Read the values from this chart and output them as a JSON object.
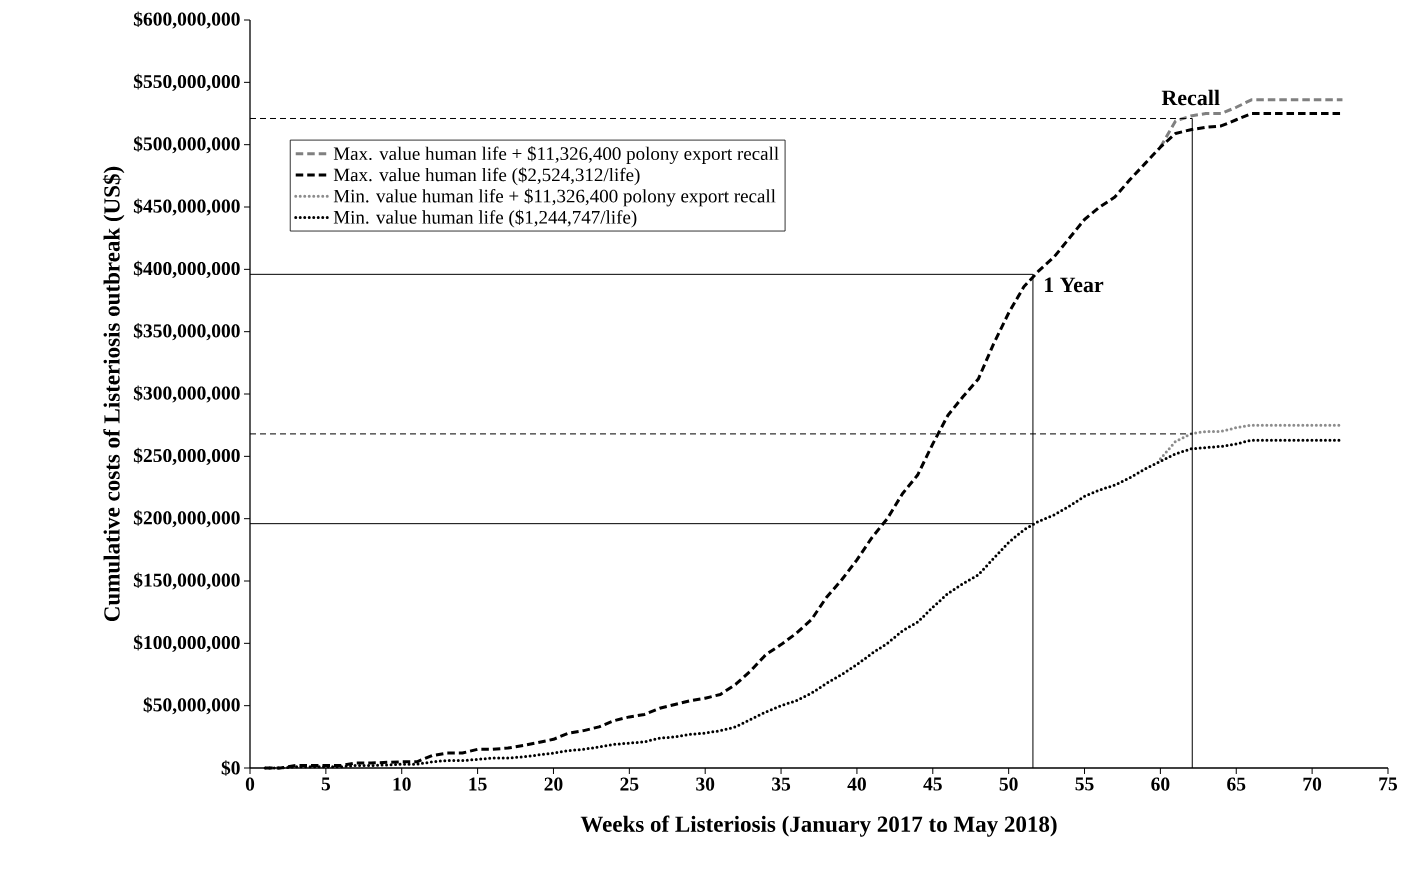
{
  "chart_data": {
    "type": "line",
    "xlabel": "Weeks of Listeriosis (January 2017 to May 2018)",
    "ylabel": "Cumulative costs of Listeriosis outbreak (US$)",
    "xlim": [
      0,
      75
    ],
    "xticks": [
      0,
      5,
      10,
      15,
      20,
      25,
      30,
      35,
      40,
      45,
      50,
      55,
      60,
      65,
      70,
      75
    ],
    "ylim": [
      0,
      600000000
    ],
    "yticks": [
      {
        "value": 0,
        "label": "$0"
      },
      {
        "value": 50000000,
        "label": "$50,000,000"
      },
      {
        "value": 100000000,
        "label": "$100,000,000"
      },
      {
        "value": 150000000,
        "label": "$150,000,000"
      },
      {
        "value": 200000000,
        "label": "$200,000,000"
      },
      {
        "value": 250000000,
        "label": "$250,000,000"
      },
      {
        "value": 300000000,
        "label": "$300,000,000"
      },
      {
        "value": 350000000,
        "label": "$350,000,000"
      },
      {
        "value": 400000000,
        "label": "$400,000,000"
      },
      {
        "value": 450000000,
        "label": "$450,000,000"
      },
      {
        "value": 500000000,
        "label": "$500,000,000"
      },
      {
        "value": 550000000,
        "label": "$550,000,000"
      },
      {
        "value": 600000000,
        "label": "$600,000,000"
      }
    ],
    "legend": "top left",
    "marker": "none",
    "series": [
      {
        "name": "Max. value human life + $11,326,400 polony export recall",
        "color": "#808080",
        "line_style": "dashed",
        "x": [
          60,
          61,
          62,
          63,
          64,
          65,
          66,
          72
        ],
        "values": [
          498000000,
          519000000,
          523000000,
          525000000,
          525000000,
          530000000,
          536000000,
          536000000
        ]
      },
      {
        "name": "Max. value human life ($2,524,312/life)",
        "color": "#000000",
        "line_style": "dashed",
        "x": [
          1,
          2,
          3,
          5,
          6,
          7,
          8,
          10,
          11,
          12,
          13,
          14,
          15,
          16,
          17,
          18,
          20,
          21,
          22,
          23,
          24,
          25,
          26,
          27,
          28,
          29,
          30,
          31,
          32,
          33,
          34,
          35,
          36,
          37,
          38,
          39,
          40,
          41,
          42,
          43,
          44,
          45,
          46,
          47,
          48,
          49,
          50,
          51,
          52,
          53,
          54,
          55,
          56,
          57,
          58,
          59,
          60,
          61,
          62,
          63,
          64,
          65,
          66,
          72
        ],
        "values": [
          0,
          0,
          2000000,
          2000000,
          2000000,
          4000000,
          4000000,
          5000000,
          5000000,
          10000000,
          12000000,
          12000000,
          15000000,
          15000000,
          16000000,
          18000000,
          23000000,
          28000000,
          30000000,
          33000000,
          38000000,
          41000000,
          43000000,
          48000000,
          51000000,
          54000000,
          56000000,
          59000000,
          67000000,
          78000000,
          91000000,
          99000000,
          108000000,
          119000000,
          137000000,
          151000000,
          167000000,
          185000000,
          200000000,
          220000000,
          235000000,
          260000000,
          283000000,
          298000000,
          312000000,
          340000000,
          365000000,
          386000000,
          399000000,
          410000000,
          425000000,
          440000000,
          450000000,
          458000000,
          472000000,
          485000000,
          498000000,
          509000000,
          512000000,
          514000000,
          515000000,
          520000000,
          525000000,
          525000000
        ]
      },
      {
        "name": "Min. value human life + $11,326,400 polony export recall",
        "color": "#8c8c8c",
        "line_style": "dotted",
        "x": [
          60,
          61,
          62,
          63,
          64,
          65,
          66,
          72
        ],
        "values": [
          248000000,
          262000000,
          268000000,
          270000000,
          270000000,
          273000000,
          275000000,
          275000000
        ]
      },
      {
        "name": "Min. value human life ($1,244,747/life)",
        "color": "#000000",
        "line_style": "dotted",
        "x": [
          1,
          2,
          3,
          5,
          6,
          7,
          8,
          10,
          11,
          12,
          13,
          14,
          15,
          16,
          17,
          18,
          20,
          21,
          22,
          23,
          24,
          25,
          26,
          27,
          28,
          29,
          30,
          31,
          32,
          33,
          34,
          35,
          36,
          37,
          38,
          39,
          40,
          41,
          42,
          43,
          44,
          45,
          46,
          47,
          48,
          49,
          50,
          51,
          52,
          53,
          54,
          55,
          56,
          57,
          58,
          59,
          60,
          61,
          62,
          63,
          64,
          65,
          66,
          72
        ],
        "values": [
          0,
          0,
          1000000,
          1000000,
          1000000,
          2000000,
          2000000,
          3000000,
          3000000,
          5000000,
          6000000,
          6000000,
          7000000,
          8000000,
          8000000,
          9000000,
          12000000,
          14000000,
          15000000,
          17000000,
          19000000,
          20000000,
          21000000,
          24000000,
          25000000,
          27000000,
          28000000,
          30000000,
          33000000,
          39000000,
          45000000,
          50000000,
          54000000,
          60000000,
          68000000,
          75000000,
          83000000,
          92000000,
          100000000,
          110000000,
          117000000,
          129000000,
          140000000,
          148000000,
          155000000,
          168000000,
          181000000,
          191000000,
          198000000,
          203000000,
          210000000,
          218000000,
          223000000,
          227000000,
          233000000,
          240000000,
          246000000,
          252000000,
          256000000,
          257000000,
          258000000,
          260000000,
          263000000,
          263000000
        ]
      },
      {
        "color": "#000000",
        "line_style": "solid",
        "x": [
          0,
          51.6
        ],
        "values": [
          396000000,
          396000000
        ]
      },
      {
        "color": "#000000",
        "line_style": "solid",
        "x": [
          0,
          51.6
        ],
        "values": [
          196000000,
          196000000
        ]
      },
      {
        "color": "#000000",
        "line_style": "dashed",
        "x": [
          0,
          62.1
        ],
        "values": [
          521000000,
          521000000
        ]
      },
      {
        "color": "#000000",
        "line_style": "dashed",
        "x": [
          0,
          62.1
        ],
        "values": [
          268000000,
          268000000
        ]
      },
      {
        "color": "#000000",
        "line_style": "solid",
        "x": [
          51.6,
          51.6
        ],
        "values": [
          0,
          396000000
        ]
      },
      {
        "color": "#000000",
        "line_style": "solid",
        "x": [
          62.1,
          62.1
        ],
        "values": [
          0,
          521000000
        ]
      }
    ],
    "annotations": [
      {
        "text": "1 Year",
        "x": 52,
        "y": 396000000
      },
      {
        "text": "Recall",
        "x": 62,
        "y": 521000000
      }
    ]
  }
}
